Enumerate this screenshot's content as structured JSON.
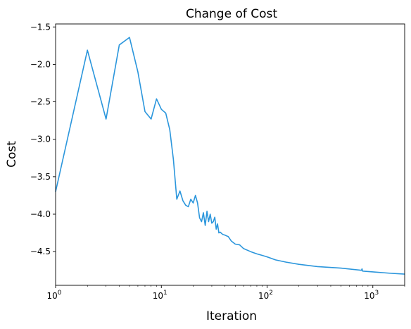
{
  "chart_data": {
    "type": "line",
    "title": "Change of Cost",
    "xlabel": "Iteration",
    "ylabel": "Cost",
    "xscale": "log",
    "xlim": [
      1,
      2000
    ],
    "ylim": [
      -4.95,
      -1.46
    ],
    "grid": false,
    "line_color": "#2b96dc",
    "x_ticks": [
      {
        "value": 1,
        "base": "10",
        "exp": "0"
      },
      {
        "value": 10,
        "base": "10",
        "exp": "1"
      },
      {
        "value": 100,
        "base": "10",
        "exp": "2"
      },
      {
        "value": 1000,
        "base": "10",
        "exp": "3"
      }
    ],
    "y_ticks": [
      {
        "value": -1.5,
        "label": "−1.5"
      },
      {
        "value": -2.0,
        "label": "−2.0"
      },
      {
        "value": -2.5,
        "label": "−2.5"
      },
      {
        "value": -3.0,
        "label": "−3.0"
      },
      {
        "value": -3.5,
        "label": "−3.5"
      },
      {
        "value": -4.0,
        "label": "−4.0"
      },
      {
        "value": -4.5,
        "label": "−4.5"
      }
    ],
    "series": [
      {
        "x": [
          1,
          2,
          3,
          4,
          5,
          6,
          7,
          8,
          9,
          10,
          11,
          12,
          13,
          14,
          15,
          16,
          17,
          18,
          19,
          20,
          21,
          22,
          23,
          24,
          25,
          26,
          27,
          28,
          29,
          30,
          31,
          32,
          33,
          34,
          35,
          36,
          38,
          40,
          43,
          46,
          50,
          55,
          60,
          70,
          80,
          90,
          100,
          120,
          150,
          200,
          300,
          500,
          780,
          790,
          800,
          1000,
          1500,
          2000
        ],
        "y": [
          -3.7,
          -1.81,
          -2.73,
          -1.74,
          -1.64,
          -2.1,
          -2.63,
          -2.73,
          -2.46,
          -2.6,
          -2.65,
          -2.87,
          -3.27,
          -3.8,
          -3.69,
          -3.82,
          -3.88,
          -3.9,
          -3.8,
          -3.85,
          -3.75,
          -3.85,
          -4.05,
          -4.1,
          -3.98,
          -4.15,
          -3.96,
          -4.1,
          -4.0,
          -4.12,
          -4.1,
          -4.04,
          -4.2,
          -4.13,
          -4.25,
          -4.24,
          -4.27,
          -4.28,
          -4.3,
          -4.36,
          -4.4,
          -4.41,
          -4.46,
          -4.5,
          -4.53,
          -4.55,
          -4.57,
          -4.61,
          -4.64,
          -4.67,
          -4.7,
          -4.72,
          -4.75,
          -4.73,
          -4.76,
          -4.77,
          -4.79,
          -4.8
        ]
      }
    ]
  }
}
